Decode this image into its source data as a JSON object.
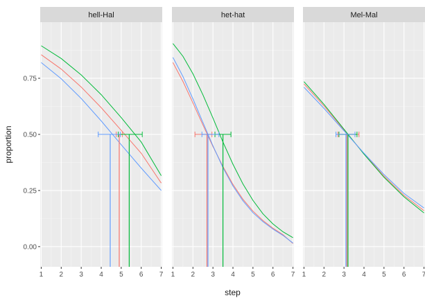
{
  "chart_data": {
    "type": "line",
    "xlabel": "step",
    "ylabel": "proportion",
    "xlim": [
      0.95,
      7.05
    ],
    "ylim": [
      -0.09,
      1.0
    ],
    "x_ticks": [
      1,
      2,
      3,
      4,
      5,
      6,
      7
    ],
    "x_tick_labels": [
      "1",
      "2",
      "3",
      "4",
      "5",
      "6",
      "7"
    ],
    "y_ticks": [
      0.0,
      0.25,
      0.5,
      0.75
    ],
    "y_tick_labels": [
      "0.00",
      "0.25",
      "0.50",
      "0.75"
    ],
    "grid": true,
    "colors": {
      "red": "#F8766D",
      "green": "#00BA38",
      "blue": "#619CFF"
    },
    "panels": [
      {
        "title": "hell-Hal",
        "series": [
          {
            "color_key": "red",
            "x": [
              1,
              2,
              3,
              4,
              5,
              6,
              7
            ],
            "y": [
              0.855,
              0.791,
              0.711,
              0.619,
              0.518,
              0.416,
              0.283
            ],
            "midpoint": 4.9,
            "ci": [
              4.75,
              5.05
            ]
          },
          {
            "color_key": "green",
            "x": [
              1,
              2,
              3,
              4,
              5,
              6,
              7
            ],
            "y": [
              0.895,
              0.838,
              0.765,
              0.677,
              0.575,
              0.466,
              0.316
            ],
            "midpoint": 5.4,
            "ci": [
              4.85,
              6.05
            ]
          },
          {
            "color_key": "blue",
            "x": [
              1,
              2,
              3,
              4,
              5,
              6,
              7
            ],
            "y": [
              0.82,
              0.748,
              0.66,
              0.56,
              0.454,
              0.35,
              0.25
            ],
            "midpoint": 4.45,
            "ci": [
              3.85,
              4.95
            ]
          }
        ]
      },
      {
        "title": "het-hat",
        "series": [
          {
            "color_key": "red",
            "x": [
              1,
              1.5,
              2,
              2.5,
              3,
              3.5,
              4,
              4.5,
              5,
              5.5,
              6,
              6.5,
              7
            ],
            "y": [
              0.82,
              0.736,
              0.64,
              0.542,
              0.446,
              0.357,
              0.277,
              0.211,
              0.158,
              0.116,
              0.082,
              0.053,
              0.014
            ],
            "midpoint": 2.7,
            "ci": [
              2.1,
              2.95
            ]
          },
          {
            "color_key": "green",
            "x": [
              1,
              1.5,
              2,
              2.5,
              3,
              3.5,
              4,
              4.5,
              5,
              5.5,
              6,
              6.5,
              7
            ],
            "y": [
              0.905,
              0.848,
              0.77,
              0.676,
              0.573,
              0.466,
              0.367,
              0.279,
              0.206,
              0.146,
              0.101,
              0.066,
              0.04
            ],
            "midpoint": 3.5,
            "ci": [
              3.1,
              3.9
            ]
          },
          {
            "color_key": "blue",
            "x": [
              1,
              1.5,
              2,
              2.5,
              3,
              3.5,
              4,
              4.5,
              5,
              5.5,
              6,
              6.5,
              7
            ],
            "y": [
              0.843,
              0.758,
              0.658,
              0.553,
              0.449,
              0.352,
              0.27,
              0.204,
              0.151,
              0.111,
              0.078,
              0.05,
              0.016
            ],
            "midpoint": 2.75,
            "ci": [
              2.45,
              3.3
            ]
          }
        ]
      },
      {
        "title": "Mel-Mal",
        "series": [
          {
            "color_key": "red",
            "x": [
              1,
              2,
              3,
              4,
              5,
              6,
              7
            ],
            "y": [
              0.725,
              0.627,
              0.52,
              0.414,
              0.314,
              0.228,
              0.16
            ],
            "midpoint": 3.15,
            "ci": [
              2.7,
              3.75
            ]
          },
          {
            "color_key": "green",
            "x": [
              1,
              2,
              3,
              4,
              5,
              6,
              7
            ],
            "y": [
              0.735,
              0.634,
              0.523,
              0.412,
              0.309,
              0.222,
              0.15
            ],
            "midpoint": 3.2,
            "ci": [
              2.75,
              3.65
            ]
          },
          {
            "color_key": "blue",
            "x": [
              1,
              2,
              3,
              4,
              5,
              6,
              7
            ],
            "y": [
              0.71,
              0.616,
              0.516,
              0.416,
              0.321,
              0.237,
              0.172
            ],
            "midpoint": 3.1,
            "ci": [
              2.6,
              3.55
            ]
          }
        ]
      }
    ]
  }
}
